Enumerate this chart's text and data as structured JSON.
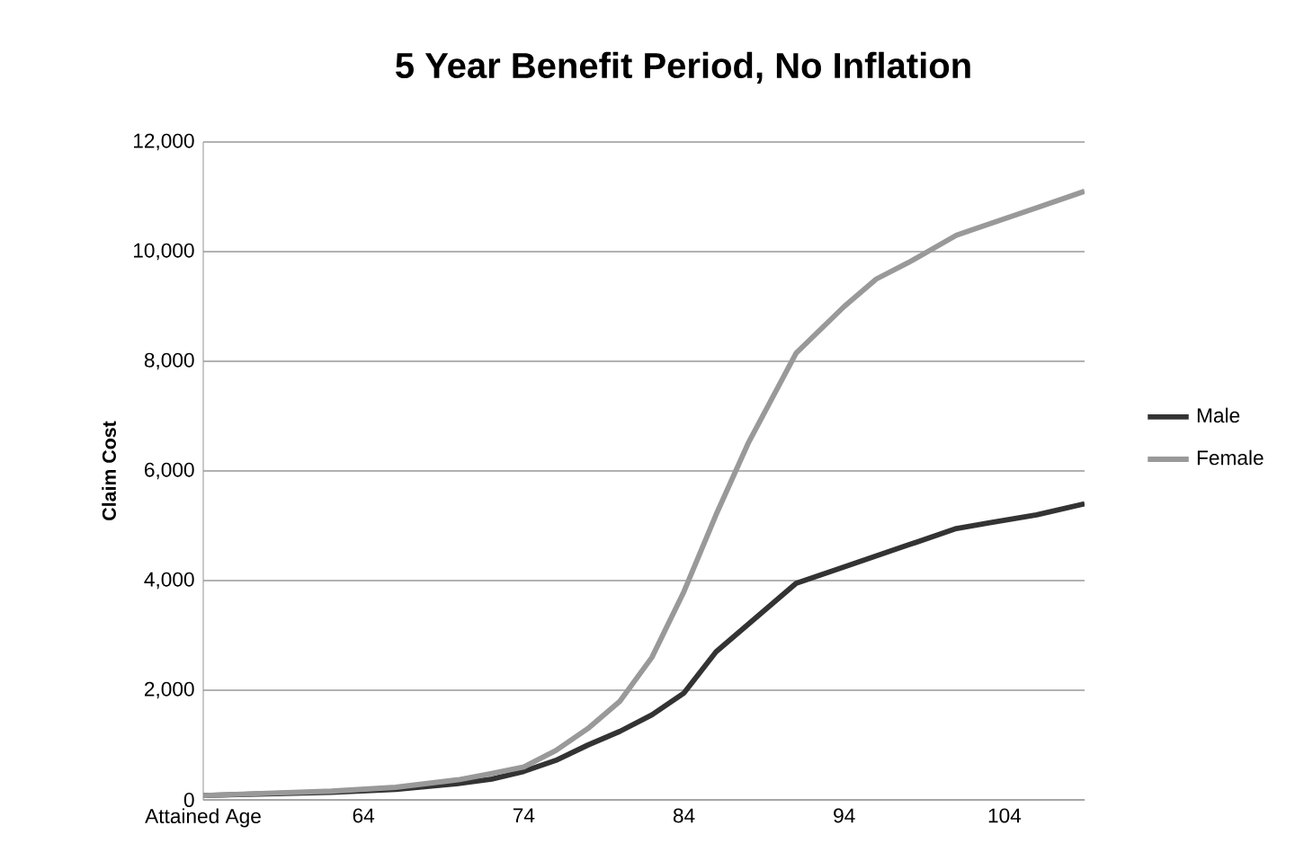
{
  "chart_data": {
    "type": "line",
    "title": "5 Year Benefit Period, No Inflation",
    "ylabel": "Claim Cost",
    "x": [
      54,
      58,
      62,
      66,
      70,
      72,
      74,
      76,
      78,
      80,
      82,
      84,
      86,
      88,
      91,
      94,
      96,
      98,
      101,
      103,
      106,
      109
    ],
    "series": [
      {
        "name": "Male",
        "color": "#333333",
        "values": [
          80,
          110,
          140,
          190,
          300,
          380,
          520,
          720,
          1000,
          1250,
          1550,
          1950,
          2700,
          3200,
          3950,
          4250,
          4450,
          4650,
          4950,
          5050,
          5200,
          5400
        ]
      },
      {
        "name": "Female",
        "color": "#999999",
        "values": [
          80,
          120,
          160,
          230,
          370,
          480,
          600,
          900,
          1300,
          1800,
          2600,
          3800,
          5200,
          6500,
          8150,
          9000,
          9500,
          9800,
          10300,
          10500,
          10800,
          11100
        ]
      }
    ],
    "xlim": [
      54,
      109
    ],
    "ylim": [
      0,
      12000
    ],
    "xticks": [
      {
        "value": 54,
        "label": "Attained Age"
      },
      64,
      74,
      84,
      94,
      104
    ],
    "yticks": [
      0,
      {
        "value": 2000,
        "label": "2,000"
      },
      {
        "value": 4000,
        "label": "4,000"
      },
      {
        "value": 6000,
        "label": "6,000"
      },
      {
        "value": 8000,
        "label": "8,000"
      },
      {
        "value": 10000,
        "label": "10,000"
      },
      {
        "value": 12000,
        "label": "12,000"
      }
    ],
    "grid": "y",
    "legend": "right"
  }
}
